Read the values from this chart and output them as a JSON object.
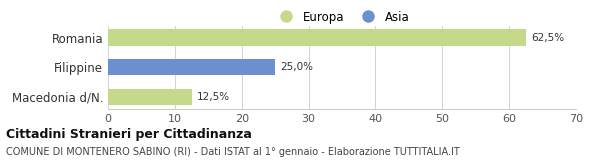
{
  "categories": [
    "Romania",
    "Filippine",
    "Macedonia d/N."
  ],
  "values": [
    62.5,
    25.0,
    12.5
  ],
  "colors": [
    "#c5d98b",
    "#6b8fcf",
    "#c5d98b"
  ],
  "legend_labels": [
    "Europa",
    "Asia"
  ],
  "legend_colors": [
    "#c5d98b",
    "#6b8fcf"
  ],
  "bar_labels": [
    "62,5%",
    "25,0%",
    "12,5%"
  ],
  "xlim": [
    0,
    70
  ],
  "xticks": [
    0,
    10,
    20,
    30,
    40,
    50,
    60,
    70
  ],
  "title_bold": "Cittadini Stranieri per Cittadinanza",
  "subtitle": "COMUNE DI MONTENERO SABINO (RI) - Dati ISTAT al 1° gennaio - Elaborazione TUTTITALIA.IT",
  "background_color": "#ffffff",
  "bar_height": 0.55
}
